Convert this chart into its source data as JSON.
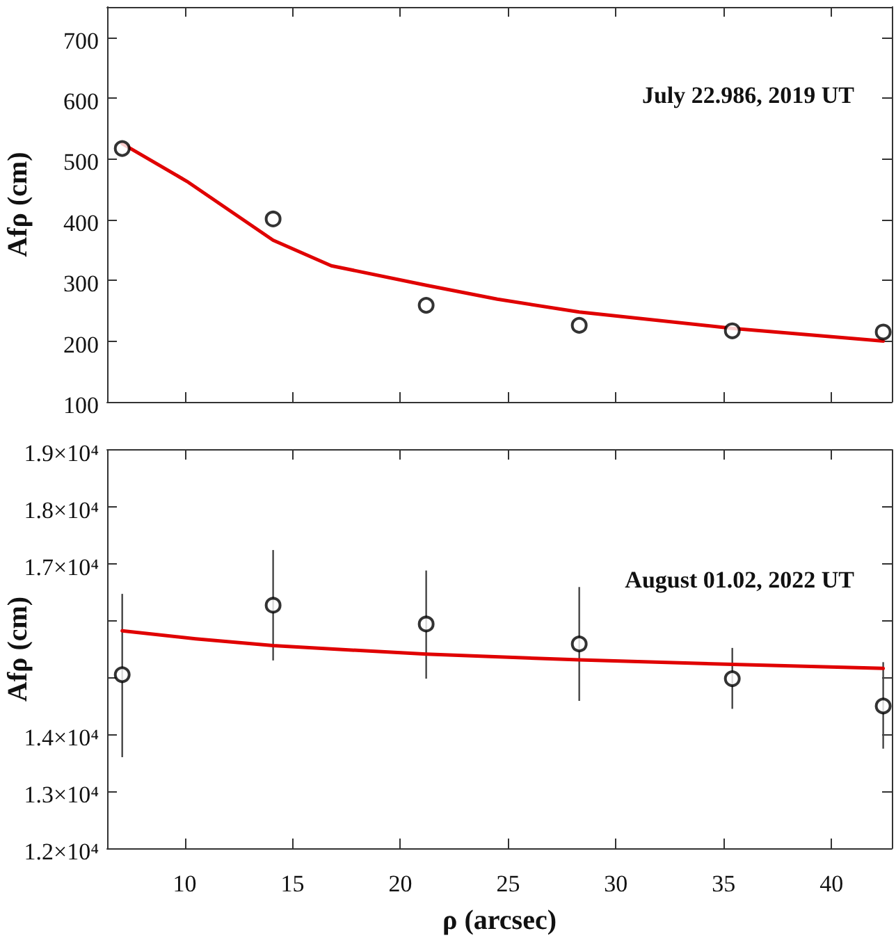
{
  "chart_data": [
    {
      "type": "scatter",
      "ylabel": "Afρ (cm)",
      "annotations": [
        "July 22.986, 2019 UT"
      ],
      "xlim": [
        6.4,
        42.8
      ],
      "xticks": [
        10,
        15,
        20,
        25,
        30,
        35,
        40
      ],
      "ylim": [
        100,
        750
      ],
      "yticks": [
        100,
        200,
        300,
        400,
        500,
        600,
        700
      ],
      "tick_labels": "y",
      "marker": "circle",
      "series": [
        {
          "color": "#000000",
          "x": [
            7.1,
            14.1,
            21.2,
            28.3,
            35.4,
            42.4
          ],
          "values": [
            517,
            401,
            259,
            226,
            217,
            215
          ]
        },
        {
          "type": "line",
          "color": "#e00000",
          "marker": "none",
          "line_style": "solid",
          "x": [
            7.1,
            10.1,
            14.1,
            16.8,
            21.2,
            24.5,
            28.3,
            35.4,
            42.4
          ],
          "values": [
            525,
            463,
            366,
            324,
            292,
            269,
            248,
            221,
            200
          ]
        }
      ]
    },
    {
      "type": "scatter",
      "xlabel": "ρ (arcsec)",
      "ylabel": "Afρ (cm)",
      "annotations": [
        "August 01.02, 2022 UT"
      ],
      "xlim": [
        6.4,
        42.8
      ],
      "xticks": [
        10,
        15,
        20,
        25,
        30,
        35,
        40
      ],
      "ylim": [
        12000,
        19000
      ],
      "yticks": [
        {
          "value": 12000,
          "label": "1.2×10⁴"
        },
        {
          "value": 13000,
          "label": "1.3×10⁴"
        },
        {
          "value": 14000,
          "label": "1.4×10⁴"
        },
        {
          "value": 15000,
          "label": null
        },
        {
          "value": 16000,
          "label": null
        },
        {
          "value": 17000,
          "label": "1.7×10⁴"
        },
        {
          "value": 18000,
          "label": "1.8×10⁴"
        },
        {
          "value": 19000,
          "label": "1.9×10⁴"
        }
      ],
      "marker": "circle",
      "series": [
        {
          "color": "#000000",
          "x": [
            7.1,
            14.1,
            21.2,
            28.3,
            35.4,
            42.4
          ],
          "values": [
            15050,
            16270,
            15940,
            15590,
            14980,
            14500
          ],
          "errors": [
            [
              13600,
              16470
            ],
            [
              15300,
              17240
            ],
            [
              14980,
              16880
            ],
            [
              14590,
              16590
            ],
            [
              14450,
              15520
            ],
            [
              13750,
              15270
            ]
          ]
        },
        {
          "type": "line",
          "color": "#e00000",
          "marker": "none",
          "line_style": "solid",
          "x": [
            7.1,
            10.5,
            14.1,
            21.2,
            28.3,
            35.4,
            42.4
          ],
          "values": [
            15820,
            15680,
            15560,
            15410,
            15310,
            15230,
            15160
          ]
        }
      ]
    }
  ]
}
